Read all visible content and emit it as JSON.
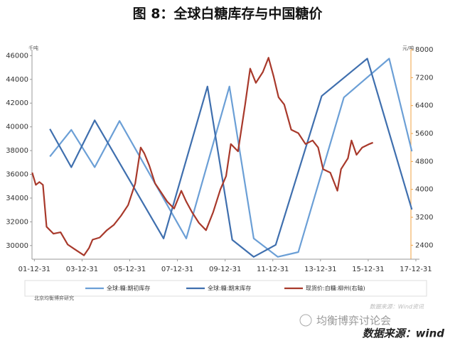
{
  "chart_data": {
    "type": "line",
    "title": "图 8：全球白糖库存与中国糖价",
    "y_unit": "千吨",
    "y2_unit": "元/吨",
    "footnote_left": "北京均衡博弈研究",
    "footnote_right": "数据来源：Wind资讯",
    "watermark": "均衡博弈讨论会",
    "source": "数据来源：wind",
    "xlim": [
      2001.9,
      2018.15
    ],
    "xticks": [
      {
        "value": 2002,
        "label": "01-12-31"
      },
      {
        "value": 2004,
        "label": "03-12-31"
      },
      {
        "value": 2006,
        "label": "05-12-31"
      },
      {
        "value": 2008,
        "label": "07-12-31"
      },
      {
        "value": 2010,
        "label": "09-12-31"
      },
      {
        "value": 2012,
        "label": "11-12-31"
      },
      {
        "value": 2014,
        "label": "13-12-31"
      },
      {
        "value": 2016,
        "label": "15-12-31"
      },
      {
        "value": 2018,
        "label": "17-12-31"
      }
    ],
    "ylim": [
      28850,
      46500
    ],
    "yticks": [
      30000,
      32000,
      34000,
      36000,
      38000,
      40000,
      42000,
      44000,
      46000
    ],
    "y2lim": [
      2000,
      8000
    ],
    "y2ticks": [
      2400,
      3200,
      4000,
      4800,
      5600,
      6400,
      7200,
      8000
    ],
    "grid": false,
    "series": [
      {
        "name": "全球:糖:期初库存",
        "color": "#6b9fd6",
        "x": [
          2002.65,
          2003.55,
          2004.53,
          2005.57,
          2008.37,
          2010.18,
          2011.2,
          2012.21,
          2013.07,
          2014.98,
          2016.88,
          2017.83
        ],
        "values": [
          37500,
          39750,
          36600,
          40500,
          30600,
          43400,
          30600,
          29050,
          29450,
          42480,
          45750,
          37940
        ]
      },
      {
        "name": "全球:糖:期末库存",
        "color": "#3f6fae",
        "x": [
          2002.65,
          2003.55,
          2004.53,
          2007.42,
          2009.26,
          2010.3,
          2011.2,
          2012.12,
          2014.05,
          2015.96,
          2017.83
        ],
        "values": [
          39820,
          36600,
          40550,
          30600,
          43400,
          30480,
          29050,
          30060,
          42600,
          45750,
          33030
        ]
      },
      {
        "name": "现货价:白糖:柳州(右轴)",
        "color": "#a8392b",
        "axis": "y2",
        "x": [
          2001.91,
          2002.06,
          2002.21,
          2002.36,
          2002.51,
          2002.8,
          2003.1,
          2003.4,
          2003.7,
          2004.08,
          2004.29,
          2004.44,
          2004.74,
          2005.04,
          2005.33,
          2005.63,
          2005.93,
          2006.23,
          2006.46,
          2006.61,
          2006.82,
          2007.06,
          2007.27,
          2007.57,
          2007.86,
          2008.16,
          2008.37,
          2008.61,
          2008.9,
          2009.2,
          2009.5,
          2009.8,
          2010.04,
          2010.24,
          2010.54,
          2010.84,
          2011.05,
          2011.29,
          2011.58,
          2011.82,
          2012.03,
          2012.24,
          2012.48,
          2012.77,
          2013.07,
          2013.37,
          2013.67,
          2013.9,
          2014.11,
          2014.41,
          2014.71,
          2014.86,
          2015.15,
          2015.3,
          2015.51,
          2015.75,
          2016.05,
          2016.2
        ],
        "values": [
          4480,
          4130,
          4210,
          4130,
          2930,
          2730,
          2770,
          2420,
          2280,
          2110,
          2320,
          2560,
          2620,
          2830,
          2980,
          3240,
          3550,
          4170,
          5200,
          5030,
          4680,
          4170,
          3960,
          3650,
          3450,
          3960,
          3650,
          3350,
          3040,
          2830,
          3350,
          4000,
          4380,
          5300,
          5090,
          6430,
          7460,
          7050,
          7360,
          7770,
          7250,
          6640,
          6430,
          5710,
          5610,
          5300,
          5400,
          5200,
          4580,
          4480,
          3960,
          4580,
          4890,
          5400,
          4990,
          5200,
          5300,
          5340
        ]
      }
    ]
  }
}
